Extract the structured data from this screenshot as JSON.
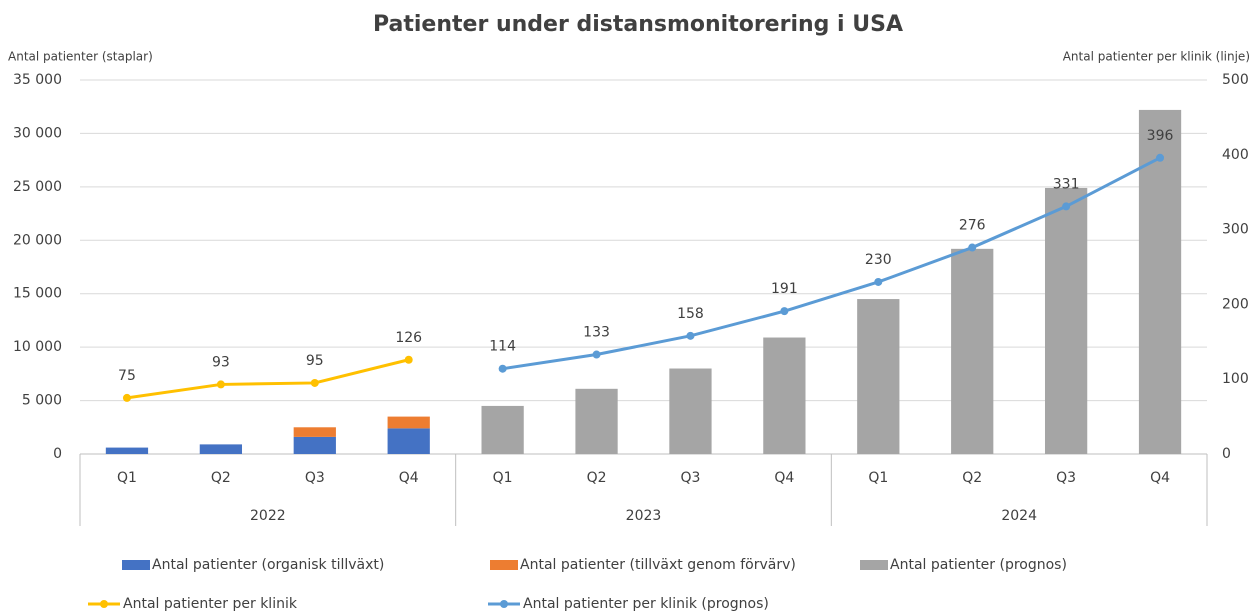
{
  "chart_data": {
    "type": "combo",
    "title": "Patienter under distansmonitorering i USA",
    "y_label": "Antal patienter (staplar)",
    "y2_label": "Antal patienter per klinik (linje)",
    "categories": [
      "Q1",
      "Q2",
      "Q3",
      "Q4",
      "Q1",
      "Q2",
      "Q3",
      "Q4",
      "Q1",
      "Q2",
      "Q3",
      "Q4"
    ],
    "category_groups": [
      "2022",
      "2023",
      "2024"
    ],
    "ylim": [
      0,
      35000
    ],
    "yticks": [
      0,
      {
        "value": 5000,
        "label": "5 000"
      },
      {
        "value": 10000,
        "label": "10 000"
      },
      {
        "value": 15000,
        "label": "15 000"
      },
      {
        "value": 20000,
        "label": "20 000"
      },
      {
        "value": 25000,
        "label": "25 000"
      },
      {
        "value": 30000,
        "label": "30 000"
      },
      {
        "value": 35000,
        "label": "35 000"
      }
    ],
    "y2lim": [
      0,
      500
    ],
    "y2ticks": [
      0,
      100,
      200,
      300,
      400,
      500
    ],
    "grid": true,
    "legend": "bottom",
    "series": [
      {
        "name": "Antal patienter (organisk tillväxt)",
        "type": "bar",
        "color": "#4472c4",
        "values": [
          600,
          900,
          1600,
          2400,
          null,
          null,
          null,
          null,
          null,
          null,
          null,
          null
        ]
      },
      {
        "name": "Antal patienter (tillväxt genom förvärv)",
        "type": "bar",
        "color": "#ed7d31",
        "values": [
          null,
          null,
          900,
          1100,
          null,
          null,
          null,
          null,
          null,
          null,
          null,
          null
        ]
      },
      {
        "name": "Antal patienter (prognos)",
        "type": "bar",
        "color": "#a5a5a5",
        "values": [
          null,
          null,
          null,
          null,
          4500,
          6100,
          8000,
          10900,
          14500,
          19200,
          24900,
          32200
        ]
      },
      {
        "name": "Antal patienter per klinik",
        "type": "line",
        "axis": "y2",
        "color": "#ffc000",
        "values": [
          75,
          93,
          95,
          126,
          null,
          null,
          null,
          null,
          null,
          null,
          null,
          null
        ]
      },
      {
        "name": "Antal patienter per klinik (prognos)",
        "type": "line",
        "axis": "y2",
        "color": "#5b9bd5",
        "values": [
          null,
          null,
          null,
          null,
          114,
          133,
          158,
          191,
          230,
          276,
          331,
          396
        ]
      }
    ]
  }
}
